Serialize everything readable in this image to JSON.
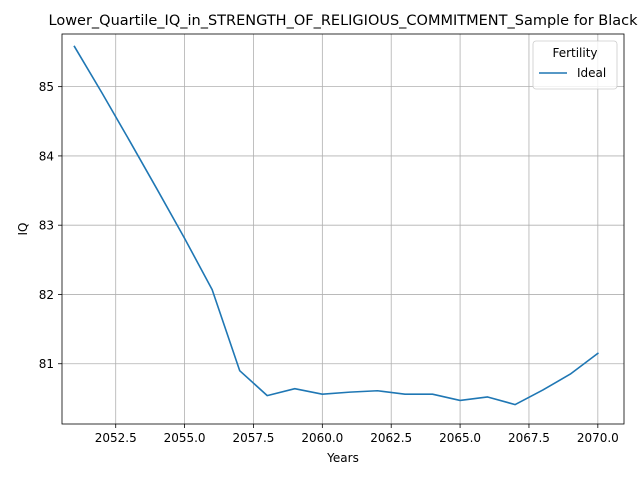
{
  "chart_data": {
    "type": "line",
    "title": "Lower_Quartile_IQ_in_STRENGTH_OF_RELIGIOUS_COMMITMENT_Sample for Black",
    "xlabel": "Years",
    "ylabel": "IQ",
    "xlim": [
      2050.55,
      2070.95
    ],
    "ylim": [
      80.13,
      85.76
    ],
    "xticks": [
      2052.5,
      2055.0,
      2057.5,
      2060.0,
      2062.5,
      2065.0,
      2067.5,
      2070.0
    ],
    "xtick_labels": [
      "2052.5",
      "2055.0",
      "2057.5",
      "2060.0",
      "2062.5",
      "2065.0",
      "2067.5",
      "2070.0"
    ],
    "yticks": [
      81,
      82,
      83,
      84,
      85
    ],
    "ytick_labels": [
      "81",
      "82",
      "83",
      "84",
      "85"
    ],
    "grid": true,
    "legend": {
      "title": "Fertility",
      "placement": "top-right"
    },
    "series": [
      {
        "name": "Ideal",
        "color": "#1f77b4",
        "x": [
          2051,
          2052,
          2053,
          2054,
          2055,
          2056,
          2057,
          2058,
          2059,
          2060,
          2061,
          2062,
          2063,
          2064,
          2065,
          2066,
          2067,
          2068,
          2069,
          2070
        ],
        "y": [
          85.58,
          84.91,
          84.22,
          83.52,
          82.81,
          82.07,
          80.9,
          80.54,
          80.64,
          80.56,
          80.59,
          80.61,
          80.56,
          80.56,
          80.47,
          80.52,
          80.41,
          80.62,
          80.85,
          81.15
        ]
      }
    ]
  }
}
